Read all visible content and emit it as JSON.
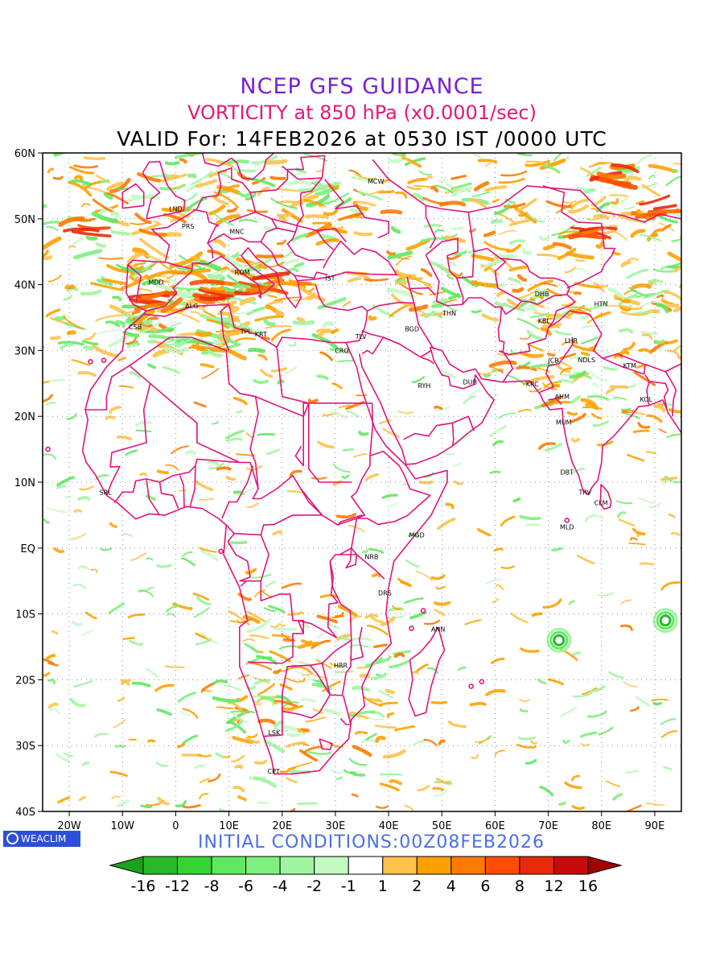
{
  "title": {
    "line1": "NCEP GFS GUIDANCE",
    "line2": "VORTICITY at 850 hPa (x0.0001/sec)",
    "line3": "VALID For: 14FEB2026 at 0530 IST /0000 UTC"
  },
  "initial_conditions": "INITIAL CONDITIONS:00Z08FEB2026",
  "logo_text": "WEACLIM",
  "lat_labels": [
    "60N",
    "50N",
    "40N",
    "30N",
    "20N",
    "10N",
    "EQ",
    "10S",
    "20S",
    "30S",
    "40S"
  ],
  "lon_labels": [
    "20W",
    "10W",
    "0",
    "10E",
    "20E",
    "30E",
    "40E",
    "50E",
    "60E",
    "70E",
    "80E",
    "90E"
  ],
  "colorbar": {
    "labels": [
      "-16",
      "-12",
      "-8",
      "-6",
      "-4",
      "-2",
      "-1",
      "1",
      "2",
      "4",
      "6",
      "8",
      "12",
      "16"
    ],
    "colors": [
      "#1aa21a",
      "#29b829",
      "#35d335",
      "#5fe85f",
      "#7ef07e",
      "#9ff59f",
      "#c4fac4",
      "#ffffff",
      "#ffc24a",
      "#ffa200",
      "#ff7a00",
      "#ff4e00",
      "#e82a0a",
      "#c80a0a",
      "#a00000"
    ]
  },
  "stations": [
    {
      "code": "LND",
      "lon": 0,
      "lat": 51.5
    },
    {
      "code": "PRS",
      "lon": 2.3,
      "lat": 48.9
    },
    {
      "code": "MNC",
      "lon": 11.5,
      "lat": 48.1
    },
    {
      "code": "MCW",
      "lon": 37.6,
      "lat": 55.7
    },
    {
      "code": "MDD",
      "lon": -3.7,
      "lat": 40.4
    },
    {
      "code": "ROM",
      "lon": 12.5,
      "lat": 41.9
    },
    {
      "code": "IST",
      "lon": 29.0,
      "lat": 41.0
    },
    {
      "code": "ALG",
      "lon": 3.0,
      "lat": 36.8
    },
    {
      "code": "CSB",
      "lon": -7.6,
      "lat": 33.6
    },
    {
      "code": "TPL",
      "lon": 13.2,
      "lat": 32.9
    },
    {
      "code": "KRT",
      "lon": 16.0,
      "lat": 32.5
    },
    {
      "code": "CRO",
      "lon": 31.2,
      "lat": 30.0
    },
    {
      "code": "TLV",
      "lon": 34.8,
      "lat": 32.1
    },
    {
      "code": "BGD",
      "lon": 44.4,
      "lat": 33.3
    },
    {
      "code": "THN",
      "lon": 51.4,
      "lat": 35.7
    },
    {
      "code": "RYH",
      "lon": 46.7,
      "lat": 24.7
    },
    {
      "code": "DUB",
      "lon": 55.3,
      "lat": 25.2
    },
    {
      "code": "DHB",
      "lon": 68.8,
      "lat": 38.6
    },
    {
      "code": "KBL",
      "lon": 69.2,
      "lat": 34.5
    },
    {
      "code": "HTN",
      "lon": 79.9,
      "lat": 37.1
    },
    {
      "code": "LHR",
      "lon": 74.3,
      "lat": 31.5
    },
    {
      "code": "JCB",
      "lon": 71.0,
      "lat": 28.5
    },
    {
      "code": "NDLS",
      "lon": 77.2,
      "lat": 28.6
    },
    {
      "code": "KTM",
      "lon": 85.3,
      "lat": 27.7
    },
    {
      "code": "KRC",
      "lon": 67.0,
      "lat": 24.9
    },
    {
      "code": "AHM",
      "lon": 72.6,
      "lat": 23.0
    },
    {
      "code": "KOL",
      "lon": 88.4,
      "lat": 22.6
    },
    {
      "code": "MUM",
      "lon": 72.9,
      "lat": 19.1
    },
    {
      "code": "DBT",
      "lon": 73.5,
      "lat": 11.5
    },
    {
      "code": "TRV",
      "lon": 76.9,
      "lat": 8.5
    },
    {
      "code": "CLM",
      "lon": 79.9,
      "lat": 6.9
    },
    {
      "code": "MLD",
      "lon": 73.5,
      "lat": 3.2
    },
    {
      "code": "SRL",
      "lon": -13.2,
      "lat": 8.5
    },
    {
      "code": "MGD",
      "lon": 45.3,
      "lat": 2.0
    },
    {
      "code": "NRB",
      "lon": 36.8,
      "lat": -1.3
    },
    {
      "code": "DRS",
      "lon": 39.3,
      "lat": -6.8
    },
    {
      "code": "ANN",
      "lon": 49.3,
      "lat": -12.3
    },
    {
      "code": "HRR",
      "lon": 31.0,
      "lat": -17.8
    },
    {
      "code": "LSK",
      "lon": 18.5,
      "lat": -28.0
    },
    {
      "code": "CPT",
      "lon": 18.4,
      "lat": -33.9
    }
  ]
}
